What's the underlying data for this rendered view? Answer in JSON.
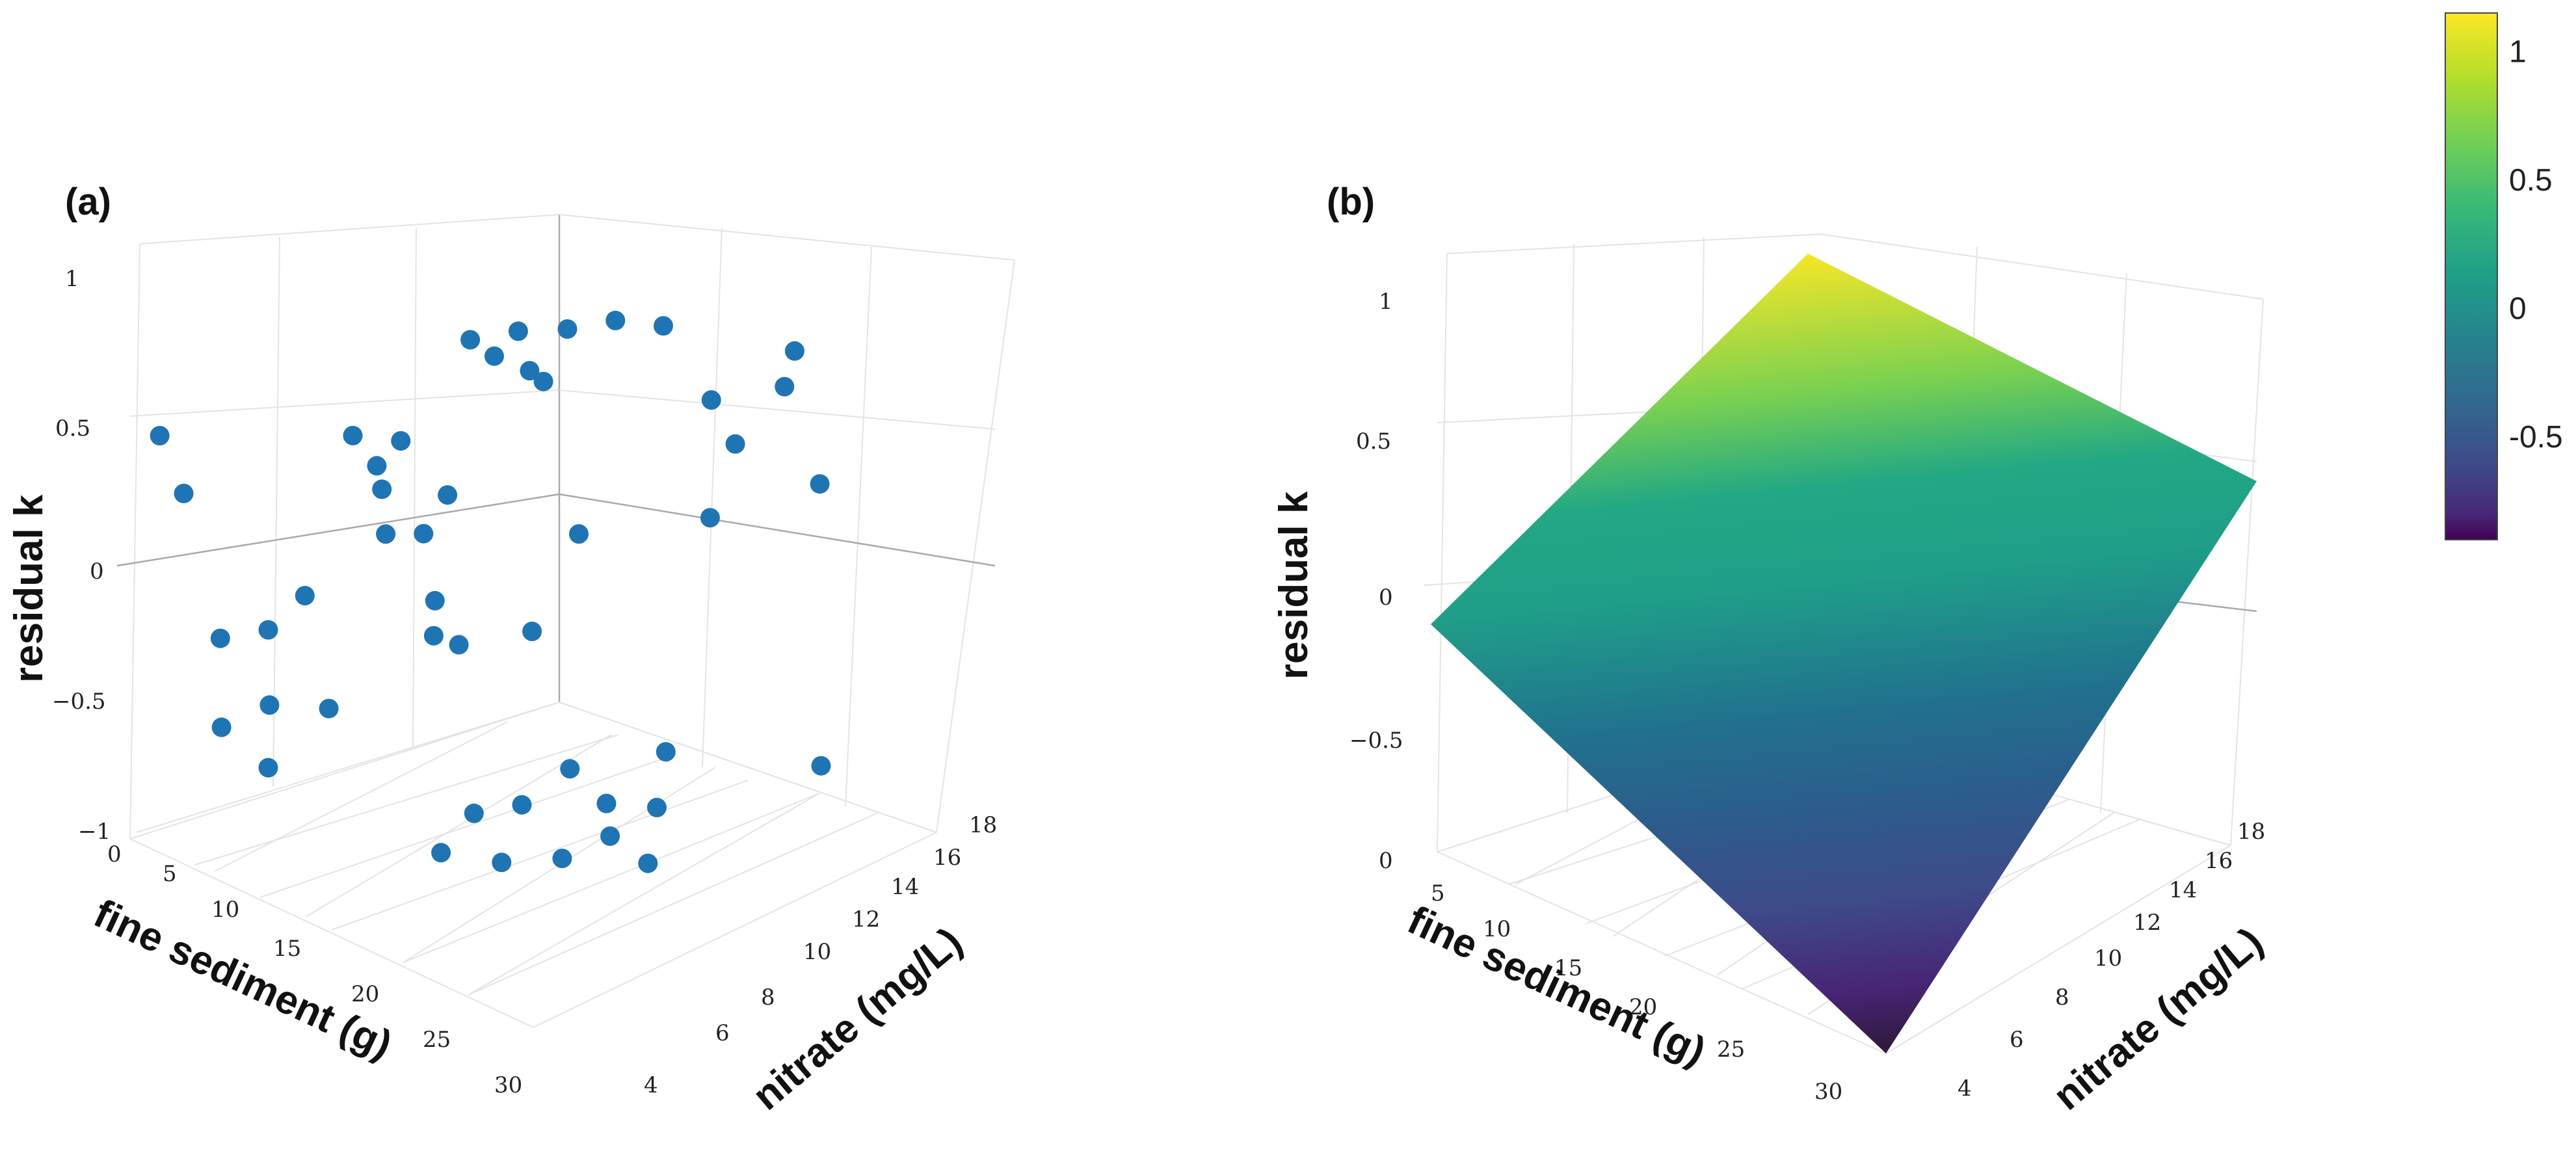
{
  "chart_data": [
    {
      "type": "scatter",
      "panel_label": "(a)",
      "xlabel": "fine sediment (g)",
      "ylabel": "nitrate (mg/L)",
      "zlabel": "residual k",
      "x_ticks": [
        "0",
        "5",
        "10",
        "15",
        "20",
        "25",
        "30"
      ],
      "y_ticks": [
        "4",
        "6",
        "8",
        "10",
        "12",
        "14",
        "16",
        "18"
      ],
      "z_ticks": [
        "1",
        "0.5",
        "0",
        "−0.5",
        "−1"
      ],
      "xlim": [
        0,
        32
      ],
      "ylim": [
        3,
        19
      ],
      "zlim": [
        -1,
        1.1
      ],
      "marker_color": "#1f74b4",
      "points": [
        {
          "x": 3,
          "y": 4.5,
          "z": 0.35
        },
        {
          "x": 4,
          "y": 5,
          "z": 0.15
        },
        {
          "x": 6,
          "y": 5.5,
          "z": -0.35
        },
        {
          "x": 8,
          "y": 6.5,
          "z": -0.3
        },
        {
          "x": 9,
          "y": 6,
          "z": -0.55
        },
        {
          "x": 10,
          "y": 7,
          "z": -0.15
        },
        {
          "x": 11,
          "y": 7.5,
          "z": -0.55
        },
        {
          "x": 7,
          "y": 5,
          "z": -0.65
        },
        {
          "x": 8,
          "y": 6.5,
          "z": -0.8
        },
        {
          "x": 12,
          "y": 8,
          "z": 0.45
        },
        {
          "x": 13,
          "y": 8.5,
          "z": 0.35
        },
        {
          "x": 12.5,
          "y": 9,
          "z": 0.25
        },
        {
          "x": 11,
          "y": 10,
          "z": 0.05
        },
        {
          "x": 14,
          "y": 9,
          "z": 0.45
        },
        {
          "x": 14,
          "y": 10,
          "z": 0.1
        },
        {
          "x": 15,
          "y": 10.5,
          "z": 0.25
        },
        {
          "x": 14,
          "y": 10.5,
          "z": -0.15
        },
        {
          "x": 13,
          "y": 11,
          "z": -0.3
        },
        {
          "x": 15,
          "y": 11,
          "z": -0.3
        },
        {
          "x": 15,
          "y": 11.5,
          "z": 0.8
        },
        {
          "x": 16,
          "y": 12,
          "z": 0.75
        },
        {
          "x": 17,
          "y": 12.5,
          "z": 0.85
        },
        {
          "x": 17,
          "y": 13,
          "z": 0.7
        },
        {
          "x": 19,
          "y": 12.5,
          "z": 0.7
        },
        {
          "x": 20,
          "y": 13,
          "z": 0.9
        },
        {
          "x": 19,
          "y": 12,
          "z": -0.2
        },
        {
          "x": 20,
          "y": 13.5,
          "z": 0.15
        },
        {
          "x": 18,
          "y": 10,
          "z": -0.85
        },
        {
          "x": 20,
          "y": 11,
          "z": -0.8
        },
        {
          "x": 22,
          "y": 12,
          "z": -0.65
        },
        {
          "x": 24,
          "y": 12.5,
          "z": -0.75
        },
        {
          "x": 19,
          "y": 8,
          "z": -0.95
        },
        {
          "x": 22,
          "y": 9,
          "z": -0.95
        },
        {
          "x": 25,
          "y": 10,
          "z": -0.9
        },
        {
          "x": 27,
          "y": 11,
          "z": -0.8
        },
        {
          "x": 28,
          "y": 12.5,
          "z": -0.7
        },
        {
          "x": 30,
          "y": 11,
          "z": -0.85
        },
        {
          "x": 26,
          "y": 14,
          "z": -0.55
        },
        {
          "x": 24,
          "y": 15,
          "z": 0.95
        },
        {
          "x": 26,
          "y": 16,
          "z": 0.7
        },
        {
          "x": 27,
          "y": 16.5,
          "z": 0.55
        },
        {
          "x": 25,
          "y": 16.5,
          "z": 0.25
        },
        {
          "x": 22,
          "y": 14,
          "z": 0.95
        },
        {
          "x": 30,
          "y": 17,
          "z": 0.8
        },
        {
          "x": 32,
          "y": 17.5,
          "z": -0.55
        },
        {
          "x": 29,
          "y": 18,
          "z": 0.9
        },
        {
          "x": 31,
          "y": 18,
          "z": 0.45
        }
      ]
    },
    {
      "type": "surface",
      "panel_label": "(b)",
      "xlabel": "fine sediment (g)",
      "ylabel": "nitrate (mg/L)",
      "zlabel": "residual k",
      "x_ticks": [
        "0",
        "5",
        "10",
        "15",
        "20",
        "25",
        "30"
      ],
      "y_ticks": [
        "4",
        "6",
        "8",
        "10",
        "12",
        "14",
        "16",
        "18"
      ],
      "z_ticks": [
        "1",
        "0.5",
        "0",
        "−0.5"
      ],
      "xlim": [
        0,
        32
      ],
      "ylim": [
        3,
        19
      ],
      "zlim": [
        -1,
        1.2
      ],
      "surface_corners": [
        {
          "x": 0,
          "y": 4,
          "z": 0.15
        },
        {
          "x": 32,
          "y": 4,
          "z": -1
        },
        {
          "x": 0,
          "y": 18,
          "z": 1.15
        },
        {
          "x": 32,
          "y": 18,
          "z": 0.2
        }
      ],
      "colorscale": "viridis",
      "colorbar": {
        "range": [
          -0.9,
          1.15
        ],
        "ticks": [
          "1",
          "0.5",
          "0",
          "-0.5"
        ],
        "tick_values": [
          1,
          0.5,
          0,
          -0.5
        ]
      }
    }
  ]
}
